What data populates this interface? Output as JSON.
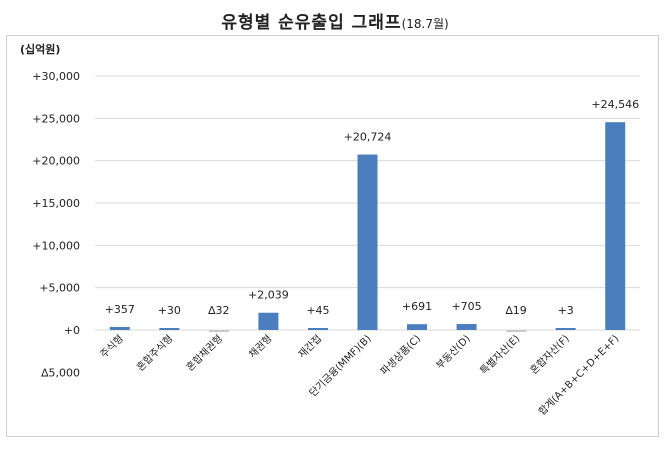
{
  "title": {
    "main": "유형별 순유출입 그래프",
    "sub": "(18.7월)"
  },
  "chart_data": {
    "type": "bar",
    "title": "유형별 순유출입 그래프(18.7월)",
    "ylabel": "(십억원)",
    "xlabel": "",
    "ylim": [
      -5000,
      30000
    ],
    "yticks": [
      30000,
      25000,
      20000,
      15000,
      10000,
      5000,
      0,
      -5000
    ],
    "ytick_labels": [
      "+30,000",
      "+25,000",
      "+20,000",
      "+15,000",
      "+10,000",
      "+5,000",
      "+0",
      "∆5,000"
    ],
    "categories": [
      "주식형",
      "혼합주식형",
      "혼합채권형",
      "채권형",
      "재간접",
      "단기금융(MMF)(B)",
      "파생상품(C)",
      "부동산(D)",
      "특별자산(E)",
      "혼합자산(F)",
      "합계(A+B+C+D+E+F)"
    ],
    "values": [
      357,
      30,
      -32,
      2039,
      45,
      20724,
      691,
      705,
      -19,
      3,
      24546
    ],
    "data_labels": [
      "+357",
      "+30",
      "∆32",
      "+2,039",
      "+45",
      "+20,724",
      "+691",
      "+705",
      "∆19",
      "+3",
      "+24,546"
    ],
    "grid": true,
    "colors": {
      "positive": "#4a7ebf",
      "negative": "#c9c9c9",
      "grid": "#d9d9d9"
    }
  }
}
